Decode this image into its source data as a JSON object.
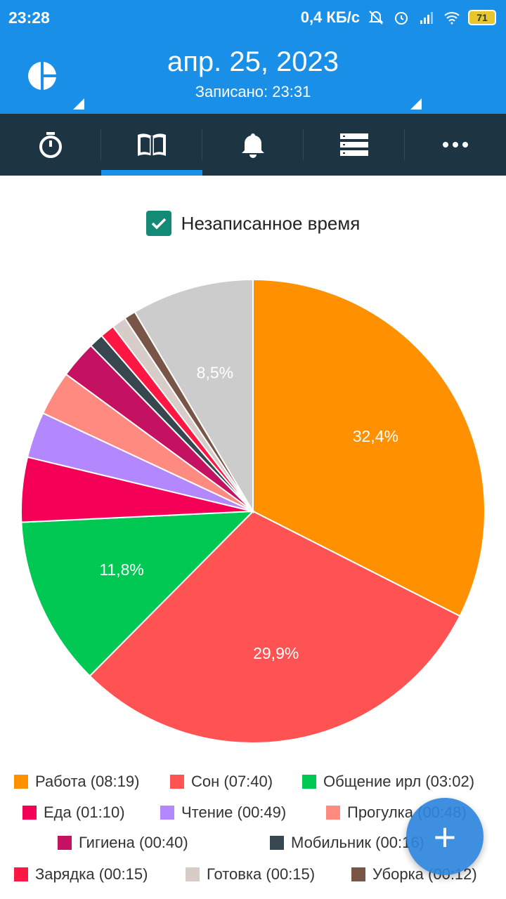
{
  "status": {
    "time": "23:28",
    "net_speed": "0,4 КБ/с",
    "battery": "71"
  },
  "header": {
    "date": "апр. 25, 2023",
    "recorded": "Записано: 23:31"
  },
  "tabs": [
    {
      "icon": "stopwatch-icon"
    },
    {
      "icon": "book-icon",
      "active": true
    },
    {
      "icon": "bell-icon"
    },
    {
      "icon": "list-icon"
    },
    {
      "icon": "more-icon"
    }
  ],
  "checkbox": {
    "label": "Незаписанное время",
    "checked": true
  },
  "chart_data": {
    "type": "pie",
    "slices": [
      {
        "name": "Работа (08:19)",
        "value": 32.4,
        "color": "#ff9100",
        "label": "32,4%"
      },
      {
        "name": "Сон (07:40)",
        "value": 29.9,
        "color": "#ff5252",
        "label": "29,9%"
      },
      {
        "name": "Общение ирл (03:02)",
        "value": 11.8,
        "color": "#00c853",
        "label": "11,8%"
      },
      {
        "name": "Еда (01:10)",
        "value": 4.5,
        "color": "#f50057",
        "label": ""
      },
      {
        "name": "Чтение (00:49)",
        "value": 3.2,
        "color": "#b388ff",
        "label": ""
      },
      {
        "name": "Прогулка (00:48)",
        "value": 3.1,
        "color": "#ff8a80",
        "label": ""
      },
      {
        "name": "Гигиена  (00:40)",
        "value": 2.6,
        "color": "#c51162",
        "label": ""
      },
      {
        "name": "Мобильник  (00:16)",
        "value": 1.0,
        "color": "#37474f",
        "label": ""
      },
      {
        "name": "Зарядка  (00:15)",
        "value": 1.0,
        "color": "#ff1744",
        "label": ""
      },
      {
        "name": "Готовка (00:15)",
        "value": 1.0,
        "color": "#d7ccc8",
        "label": ""
      },
      {
        "name": "Уборка (00:12)",
        "value": 0.8,
        "color": "#795548",
        "label": ""
      },
      {
        "name": "",
        "value": 8.5,
        "color": "#cccccc",
        "label": "8,5%"
      }
    ]
  },
  "legend": [
    {
      "label": "Работа (08:19)",
      "color": "#ff9100"
    },
    {
      "label": "Сон (07:40)",
      "color": "#ff5252"
    },
    {
      "label": "Общение ирл (03:02)",
      "color": "#00c853"
    },
    {
      "label": "Еда (01:10)",
      "color": "#f50057"
    },
    {
      "label": "Чтение (00:49)",
      "color": "#b388ff"
    },
    {
      "label": "Прогулка (00:48)",
      "color": "#ff8a80"
    },
    {
      "label": "Гигиена  (00:40)",
      "color": "#c51162"
    },
    {
      "label": "Мобильник  (00:16)",
      "color": "#37474f"
    },
    {
      "label": "Зарядка  (00:15)",
      "color": "#ff1744"
    },
    {
      "label": "Готовка (00:15)",
      "color": "#d7ccc8"
    },
    {
      "label": "Уборка (00:12)",
      "color": "#795548"
    }
  ],
  "fab": {
    "label": "+"
  }
}
